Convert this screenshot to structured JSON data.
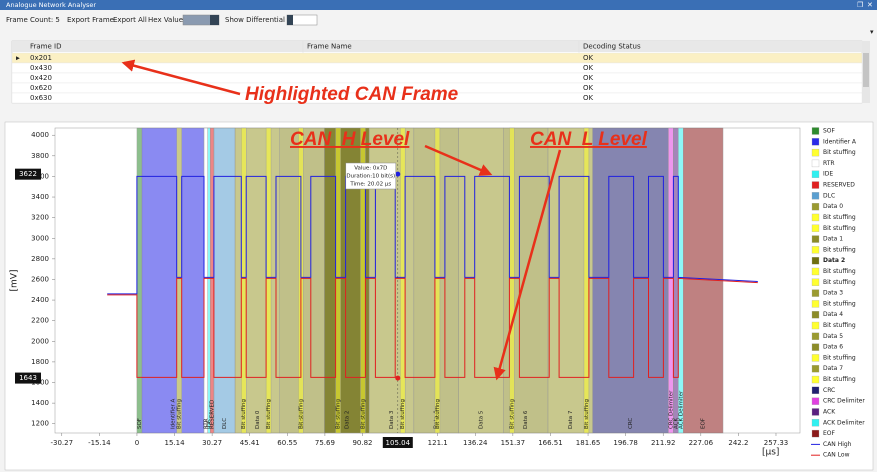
{
  "window": {
    "title": "Analogue Network Analyser"
  },
  "toolbar": {
    "frame_count": "Frame Count: 5",
    "export_frame": "Export Frame",
    "export_all": "Export All",
    "hex_values": "Hex Values",
    "show_differential": "Show Differential"
  },
  "table": {
    "columns": [
      "Frame ID",
      "Frame Name",
      "Decoding Status"
    ],
    "rows": [
      {
        "frame_id": "0x201",
        "status": "OK"
      },
      {
        "frame_id": "0x430",
        "status": "OK"
      },
      {
        "frame_id": "0x420",
        "status": "OK"
      },
      {
        "frame_id": "0x620",
        "status": "OK"
      },
      {
        "frame_id": "0x630",
        "status": "OK"
      }
    ]
  },
  "annotations": {
    "highlighted_frame": "Highlighted CAN Frame",
    "can_h": "CAN_H Level",
    "can_l": "CAN_L Level"
  },
  "chart": {
    "type": "line",
    "ylabel": "[mV]",
    "xlabel": "[µs]",
    "xlim": [
      -33,
      267
    ],
    "ylim": [
      1110,
      4070
    ],
    "xticks": [
      -30.27,
      -15.14,
      0,
      15.14,
      30.27,
      45.41,
      60.55,
      75.69,
      90.82,
      121.1,
      136.24,
      151.37,
      166.51,
      181.65,
      196.78,
      211.92,
      227.06,
      242.2,
      257.33
    ],
    "yticks": [
      1200,
      1400,
      1600,
      1800,
      2000,
      2200,
      2400,
      2600,
      2800,
      3000,
      3200,
      3400,
      3600,
      3800,
      4000
    ],
    "cursor_x": 105.04,
    "cursor_y": [
      3622,
      1643
    ],
    "tooltip": [
      "Value: 0x7D",
      "Duration:10 bit(s)",
      "Time: 20.02 µs"
    ],
    "selected_region": 12,
    "regions": [
      {
        "name": "SOF",
        "color": "#2e8b2e",
        "start": 0,
        "end": 2
      },
      {
        "name": "Identifier A",
        "color": "#2a2ae8",
        "start": 2,
        "end": 27
      },
      {
        "name": "Bit stuffing",
        "color": "#ffff30",
        "start": 16,
        "end": 18
      },
      {
        "name": "RTR",
        "color": "#ffffff",
        "start": 27,
        "end": 28.5
      },
      {
        "name": "IDE",
        "color": "#30f0f0",
        "start": 28.5,
        "end": 29.5
      },
      {
        "name": "RESERVED",
        "color": "#e02020",
        "start": 29.5,
        "end": 31
      },
      {
        "name": "DLC",
        "color": "#5a9fd0",
        "start": 31,
        "end": 39.5
      },
      {
        "name": "Data 0",
        "color": "#9a9a30",
        "start": 39.5,
        "end": 57.5
      },
      {
        "name": "Bit stuffing",
        "color": "#ffff30",
        "start": 42,
        "end": 44
      },
      {
        "name": "Bit stuffing",
        "color": "#ffff30",
        "start": 52,
        "end": 54
      },
      {
        "name": "Data 1",
        "color": "#8c8c28",
        "start": 57.5,
        "end": 75.5
      },
      {
        "name": "Bit stuffing",
        "color": "#ffff30",
        "start": 65,
        "end": 67
      },
      {
        "name": "Data 2",
        "color": "#6e6e10",
        "start": 75.5,
        "end": 93.5
      },
      {
        "name": "Bit stuffing",
        "color": "#ffff30",
        "start": 80,
        "end": 82
      },
      {
        "name": "Bit stuffing",
        "color": "#ffff30",
        "start": 90,
        "end": 92
      },
      {
        "name": "Data 3",
        "color": "#9a9a30",
        "start": 93.5,
        "end": 111.5
      },
      {
        "name": "Bit stuffing",
        "color": "#ffff30",
        "start": 106,
        "end": 108
      },
      {
        "name": "Data 4",
        "color": "#8c8c28",
        "start": 111.5,
        "end": 129.5
      },
      {
        "name": "Bit stuffing",
        "color": "#ffff30",
        "start": 120,
        "end": 122
      },
      {
        "name": "Data 5",
        "color": "#9a9a30",
        "start": 129.5,
        "end": 147.5
      },
      {
        "name": "Data 6",
        "color": "#8c8c28",
        "start": 147.5,
        "end": 165.5
      },
      {
        "name": "Bit stuffing",
        "color": "#ffff30",
        "start": 150,
        "end": 152
      },
      {
        "name": "Data 7",
        "color": "#9a9a30",
        "start": 165.5,
        "end": 183.5
      },
      {
        "name": "Bit stuffing",
        "color": "#ffff30",
        "start": 180,
        "end": 182
      },
      {
        "name": "CRC",
        "color": "#202070",
        "start": 183.5,
        "end": 214
      },
      {
        "name": "CRC Delimiter",
        "color": "#e040e0",
        "start": 214,
        "end": 216
      },
      {
        "name": "ACK",
        "color": "#5a2080",
        "start": 216,
        "end": 218
      },
      {
        "name": "ACK Delimiter",
        "color": "#30f0f0",
        "start": 218,
        "end": 220
      },
      {
        "name": "EOF",
        "color": "#8b1a1a",
        "start": 220,
        "end": 236
      }
    ],
    "x": [
      -12,
      0,
      0,
      16,
      16,
      18,
      18,
      27,
      27,
      31,
      31,
      42,
      42,
      44,
      44,
      52,
      52,
      56,
      56,
      66,
      66,
      70,
      70,
      80,
      80,
      84,
      84,
      92,
      92,
      96,
      96,
      104,
      104,
      108,
      108,
      120,
      120,
      124,
      124,
      132,
      132,
      136,
      136,
      150,
      150,
      154,
      154,
      166,
      166,
      170,
      170,
      182,
      182,
      190,
      190,
      200,
      200,
      206,
      206,
      212,
      212,
      216,
      216,
      218,
      218,
      250
    ],
    "series": [
      {
        "name": "CAN High",
        "color": "#2020e0",
        "values": [
          2460,
          2460,
          3600,
          3600,
          2620,
          2620,
          3600,
          3600,
          2620,
          2620,
          3600,
          3600,
          2620,
          2620,
          3600,
          3600,
          2620,
          2620,
          3600,
          3600,
          2620,
          2620,
          3600,
          3600,
          2620,
          2620,
          3600,
          3600,
          2620,
          2620,
          3600,
          3600,
          2620,
          2620,
          3600,
          3600,
          2620,
          2620,
          3600,
          3600,
          2620,
          2620,
          3600,
          3600,
          2620,
          2620,
          3600,
          3600,
          2620,
          2620,
          3600,
          3600,
          2620,
          2620,
          3600,
          3600,
          2620,
          2620,
          3600,
          3600,
          2620,
          2620,
          3600,
          3600,
          2620,
          2580
        ]
      },
      {
        "name": "CAN Low",
        "color": "#e02020",
        "values": [
          2450,
          2450,
          1650,
          1650,
          2610,
          2610,
          1650,
          1650,
          2610,
          2610,
          1650,
          1650,
          2610,
          2610,
          1650,
          1650,
          2610,
          2610,
          1650,
          1650,
          2610,
          2610,
          1650,
          1650,
          2610,
          2610,
          1650,
          1650,
          2610,
          2610,
          1650,
          1650,
          2610,
          2610,
          1650,
          1650,
          2610,
          2610,
          1650,
          1650,
          2610,
          2610,
          1650,
          1650,
          2610,
          2610,
          1650,
          1650,
          2610,
          2610,
          1650,
          1650,
          2610,
          2610,
          1650,
          1650,
          2610,
          2610,
          1650,
          1650,
          2610,
          2610,
          1650,
          1650,
          2610,
          2570
        ]
      }
    ]
  }
}
